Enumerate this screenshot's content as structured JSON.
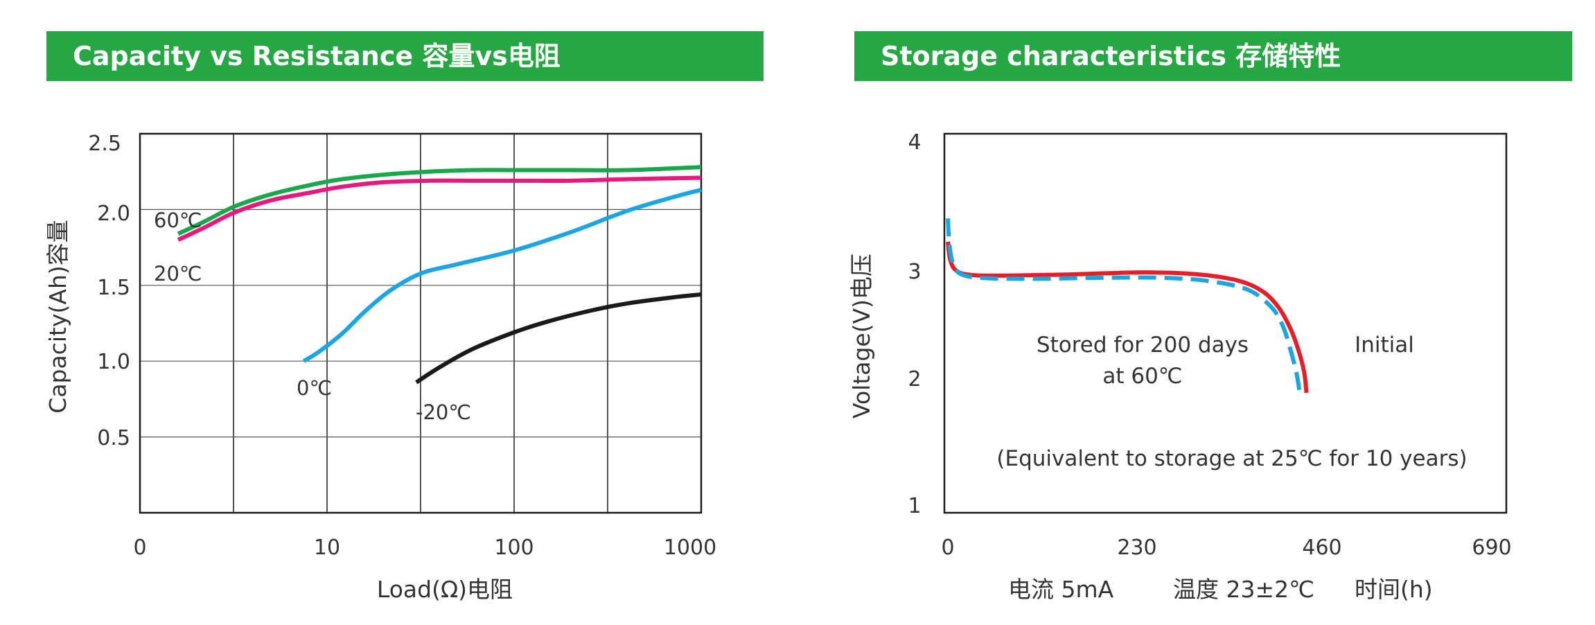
{
  "chart_data": [
    {
      "title": "Capacity vs Resistance 容量vs电阻",
      "type": "line",
      "xlabel": "Load(Ω)电阻",
      "ylabel": "Capacity(Ah)容量",
      "x_scale": "log",
      "xlim": [
        1,
        1000
      ],
      "ylim": [
        0,
        2.5
      ],
      "x_ticks": [
        "0",
        "10",
        "100",
        "1000"
      ],
      "y_ticks": [
        "0.5",
        "1.0",
        "1.5",
        "2.0",
        "2.5"
      ],
      "grid": true,
      "series": [
        {
          "name": "60℃",
          "color": "#1aa64a",
          "points": [
            [
              1.6,
              1.84
            ],
            [
              2.2,
              1.92
            ],
            [
              3.2,
              2.02
            ],
            [
              5,
              2.1
            ],
            [
              8,
              2.16
            ],
            [
              12,
              2.2
            ],
            [
              20,
              2.23
            ],
            [
              35,
              2.25
            ],
            [
              60,
              2.26
            ],
            [
              100,
              2.26
            ],
            [
              200,
              2.26
            ],
            [
              400,
              2.26
            ],
            [
              1000,
              2.28
            ]
          ]
        },
        {
          "name": "20℃",
          "color": "#e6197f",
          "points": [
            [
              1.6,
              1.8
            ],
            [
              2.2,
              1.88
            ],
            [
              3.2,
              1.98
            ],
            [
              5,
              2.06
            ],
            [
              8,
              2.11
            ],
            [
              12,
              2.15
            ],
            [
              20,
              2.18
            ],
            [
              35,
              2.19
            ],
            [
              60,
              2.19
            ],
            [
              100,
              2.19
            ],
            [
              200,
              2.19
            ],
            [
              400,
              2.2
            ],
            [
              1000,
              2.21
            ]
          ]
        },
        {
          "name": "0℃",
          "color": "#1ba6e2",
          "points": [
            [
              7.5,
              1.0
            ],
            [
              9,
              1.06
            ],
            [
              12,
              1.18
            ],
            [
              16,
              1.33
            ],
            [
              22,
              1.47
            ],
            [
              32,
              1.58
            ],
            [
              50,
              1.64
            ],
            [
              100,
              1.73
            ],
            [
              200,
              1.85
            ],
            [
              400,
              1.99
            ],
            [
              700,
              2.08
            ],
            [
              1000,
              2.13
            ]
          ]
        },
        {
          "name": "-20℃",
          "color": "#1a1a1a",
          "points": [
            [
              30,
              0.86
            ],
            [
              40,
              0.96
            ],
            [
              60,
              1.08
            ],
            [
              100,
              1.19
            ],
            [
              150,
              1.26
            ],
            [
              250,
              1.33
            ],
            [
              400,
              1.38
            ],
            [
              700,
              1.42
            ],
            [
              1000,
              1.44
            ]
          ]
        }
      ]
    },
    {
      "title": "Storage characteristics 存储特性",
      "type": "line",
      "ylabel": "Voltage(V)电压",
      "xlim": [
        0,
        690
      ],
      "ylim": [
        1,
        4
      ],
      "x_ticks": [
        "0",
        "230",
        "460",
        "690"
      ],
      "y_ticks": [
        "1",
        "2",
        "3",
        "4"
      ],
      "grid": false,
      "bottom_labels": [
        "电流 5mA",
        "温度 23±2℃",
        "时间(h)"
      ],
      "annotations": {
        "initial": "Initial",
        "stored_line1": "Stored for 200 days",
        "stored_line2": "at 60℃",
        "equivalent": "(Equivalent to storage at 25℃ for 10 years)"
      },
      "series": [
        {
          "name": "Initial",
          "color": "#e41f2a",
          "style": "solid",
          "points": [
            [
              0,
              3.22
            ],
            [
              3,
              3.08
            ],
            [
              10,
              3.0
            ],
            [
              25,
              2.96
            ],
            [
              60,
              2.95
            ],
            [
              150,
              2.96
            ],
            [
              250,
              2.98
            ],
            [
              320,
              2.96
            ],
            [
              370,
              2.9
            ],
            [
              400,
              2.8
            ],
            [
              420,
              2.65
            ],
            [
              435,
              2.45
            ],
            [
              445,
              2.25
            ],
            [
              452,
              2.05
            ],
            [
              455,
              1.88
            ]
          ]
        },
        {
          "name": "Stored for 200 days at 60℃",
          "color": "#1ba6e2",
          "style": "dashed",
          "points": [
            [
              0,
              3.4
            ],
            [
              2,
              3.2
            ],
            [
              6,
              3.06
            ],
            [
              15,
              2.97
            ],
            [
              40,
              2.93
            ],
            [
              100,
              2.92
            ],
            [
              200,
              2.93
            ],
            [
              270,
              2.93
            ],
            [
              330,
              2.9
            ],
            [
              380,
              2.82
            ],
            [
              410,
              2.66
            ],
            [
              425,
              2.48
            ],
            [
              435,
              2.25
            ],
            [
              442,
              2.05
            ],
            [
              446,
              1.9
            ]
          ]
        }
      ]
    }
  ]
}
